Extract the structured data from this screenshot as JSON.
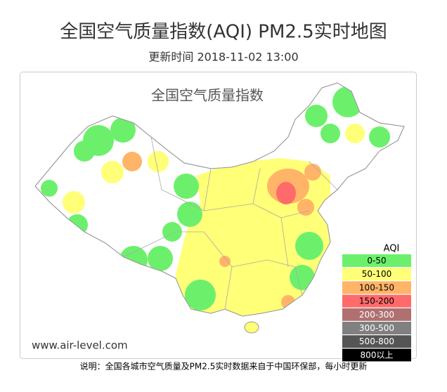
{
  "header": {
    "title": "全国空气质量指数(AQI) PM2.5实时地图",
    "subtitle": "更新时间 2018-11-02 13:00"
  },
  "map": {
    "title": "全国空气质量指数",
    "watermark": "www.air-level.com"
  },
  "legend": {
    "title": "AQI",
    "items": [
      {
        "label": "0-50",
        "color": "#6cf06c"
      },
      {
        "label": "50-100",
        "color": "#ffff78"
      },
      {
        "label": "100-150",
        "color": "#ffb468"
      },
      {
        "label": "150-200",
        "color": "#ff6a6a"
      },
      {
        "label": "200-300",
        "color": "#b07070"
      },
      {
        "label": "300-500",
        "color": "#808080"
      },
      {
        "label": "500-800",
        "color": "#555555"
      },
      {
        "label": "800以上",
        "color": "#000000"
      }
    ]
  },
  "footer": {
    "note": "说明：全国各城市空气质量及PM2.5实时数据来自于中国环保部，每小时更新"
  }
}
